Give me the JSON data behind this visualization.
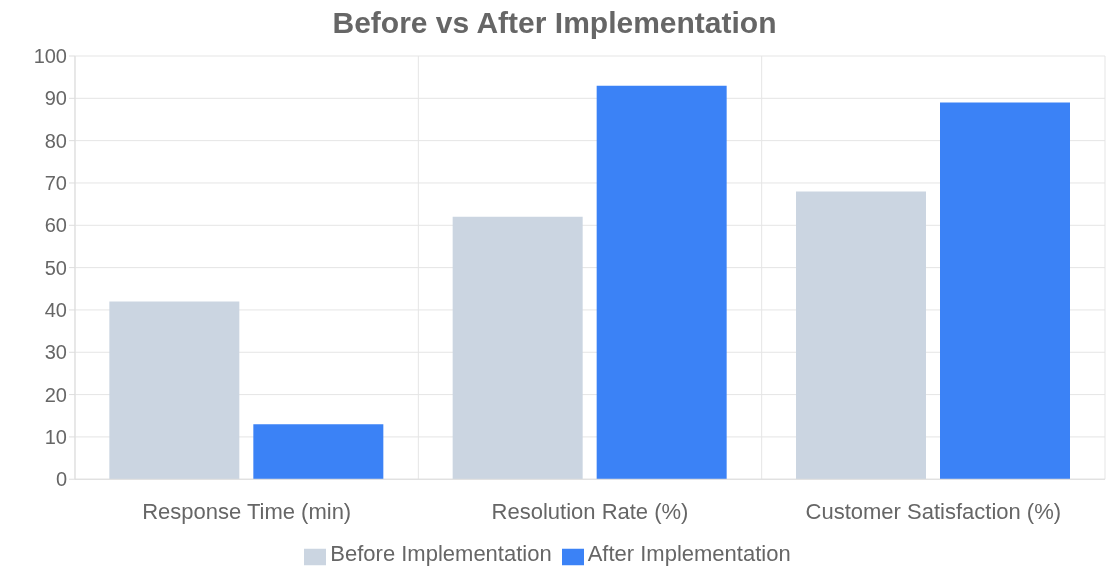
{
  "chart_data": {
    "type": "bar",
    "title": "Before vs After Implementation",
    "categories": [
      "Response Time (min)",
      "Resolution Rate (%)",
      "Customer Satisfaction (%)"
    ],
    "series": [
      {
        "name": "Before Implementation",
        "color": "#cbd5e1",
        "values": [
          42,
          62,
          68
        ]
      },
      {
        "name": "After Implementation",
        "color": "#3b82f6",
        "values": [
          13,
          93,
          89
        ]
      }
    ],
    "ylim": [
      0,
      100
    ],
    "yticks": [
      0,
      10,
      20,
      30,
      40,
      50,
      60,
      70,
      80,
      90,
      100
    ],
    "grid": true,
    "legend": "bottom"
  }
}
